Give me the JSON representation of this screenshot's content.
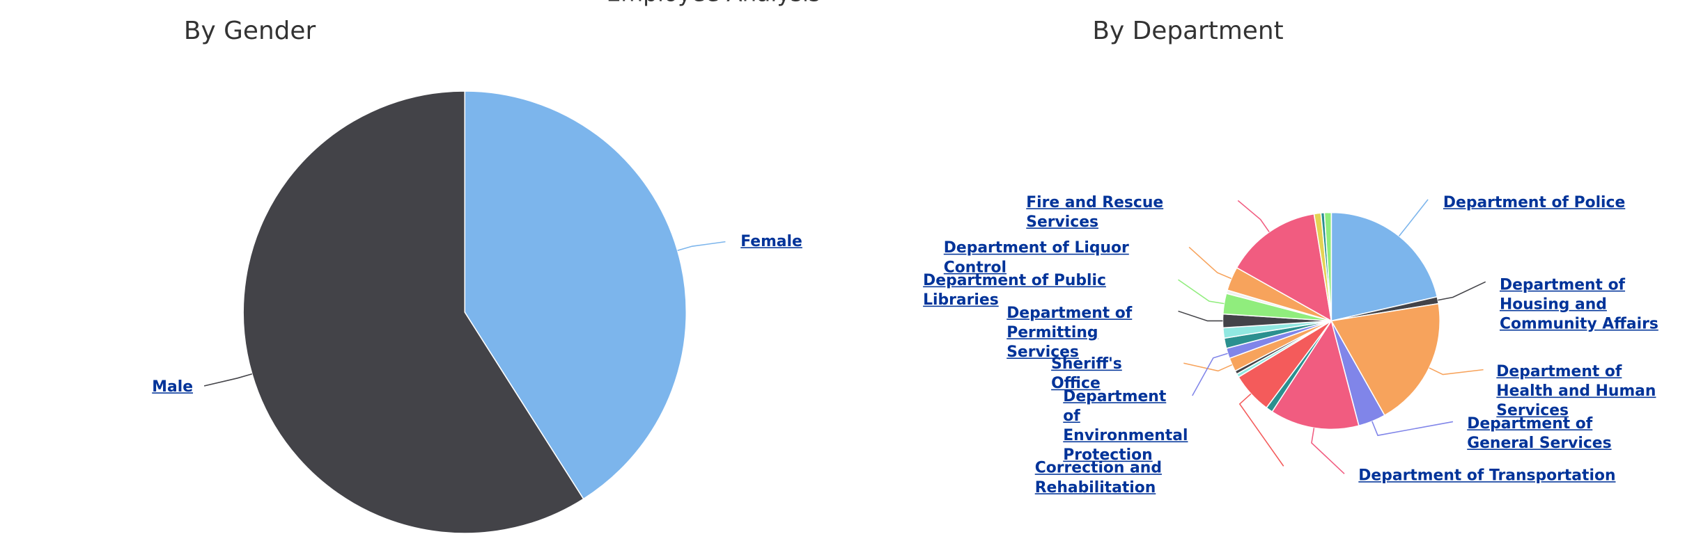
{
  "title": "Employee Analysis",
  "chart_data": [
    {
      "type": "pie",
      "title": "By Gender",
      "categories": [
        "Female",
        "Male"
      ],
      "values": [
        41,
        59
      ],
      "colors": [
        "#7cb5ec",
        "#434348"
      ]
    },
    {
      "type": "pie",
      "title": "By Department",
      "categories": [
        "Department of Police",
        "Department of Housing and Community Affairs",
        "Department of Health and Human Services",
        "Department of General Services",
        "Department of Transportation",
        null,
        "Correction and Rehabilitation",
        null,
        null,
        "Sheriff's Office",
        "Department of Environmental Protection",
        null,
        null,
        "Department of Permitting Services",
        "Department of Public Libraries",
        null,
        "Department of Liquor Control",
        "Fire and Rescue Services",
        null,
        null,
        null
      ],
      "values": [
        21,
        1,
        19,
        4,
        13,
        1,
        6,
        0.5,
        0.5,
        2,
        1.5,
        1.5,
        1.5,
        2,
        3,
        0.5,
        3.5,
        14,
        1,
        0.5,
        1
      ],
      "colors": [
        "#7cb5ec",
        "#434348",
        "#f7a35c",
        "#8085e9",
        "#f15c80",
        "#2b908f",
        "#f45b5b",
        "#91e8e1",
        "#434348",
        "#f7a35c",
        "#8085e9",
        "#2b908f",
        "#91e8e1",
        "#434348",
        "#90ed7d",
        "#f0f0f0",
        "#f7a35c",
        "#f15c80",
        "#e4d354",
        "#2b908f",
        "#90ed7d"
      ]
    }
  ]
}
